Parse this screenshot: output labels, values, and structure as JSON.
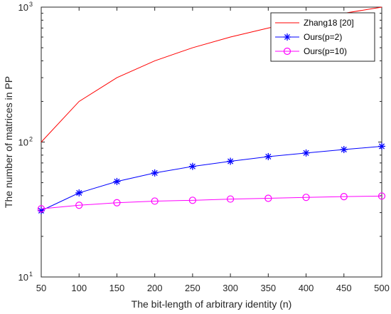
{
  "chart_data": {
    "type": "line",
    "title": "",
    "xlabel": "The bit-length of arbitrary identity (n)",
    "ylabel": "The number of matrices in PP",
    "x": [
      50,
      100,
      150,
      200,
      250,
      300,
      350,
      400,
      450,
      500
    ],
    "xlim": [
      50,
      500
    ],
    "ylim": [
      10,
      1000
    ],
    "yscale": "log",
    "x_ticks": [
      "50",
      "100",
      "150",
      "200",
      "250",
      "300",
      "350",
      "400",
      "450",
      "500"
    ],
    "y_ticks": [
      {
        "value": 10,
        "base": "10",
        "exp": "1"
      },
      {
        "value": 100,
        "base": "10",
        "exp": "2"
      },
      {
        "value": 1000,
        "base": "10",
        "exp": "3"
      }
    ],
    "grid": false,
    "legend_position": "top-right",
    "series": [
      {
        "name": "Zhang18 [20]",
        "color": "#ff0000",
        "marker": "none",
        "values": [
          100,
          200,
          300,
          400,
          500,
          600,
          700,
          800,
          900,
          1000
        ]
      },
      {
        "name": "Ours(p=2)",
        "color": "#0000ff",
        "marker": "asterisk",
        "values": [
          31,
          42,
          51,
          59,
          66,
          72,
          78,
          83,
          88,
          93
        ]
      },
      {
        "name": "Ours(p=10)",
        "color": "#ff00ff",
        "marker": "circle",
        "values": [
          32,
          34,
          35.5,
          36.5,
          37,
          37.8,
          38.3,
          38.9,
          39.4,
          39.8
        ]
      }
    ]
  }
}
